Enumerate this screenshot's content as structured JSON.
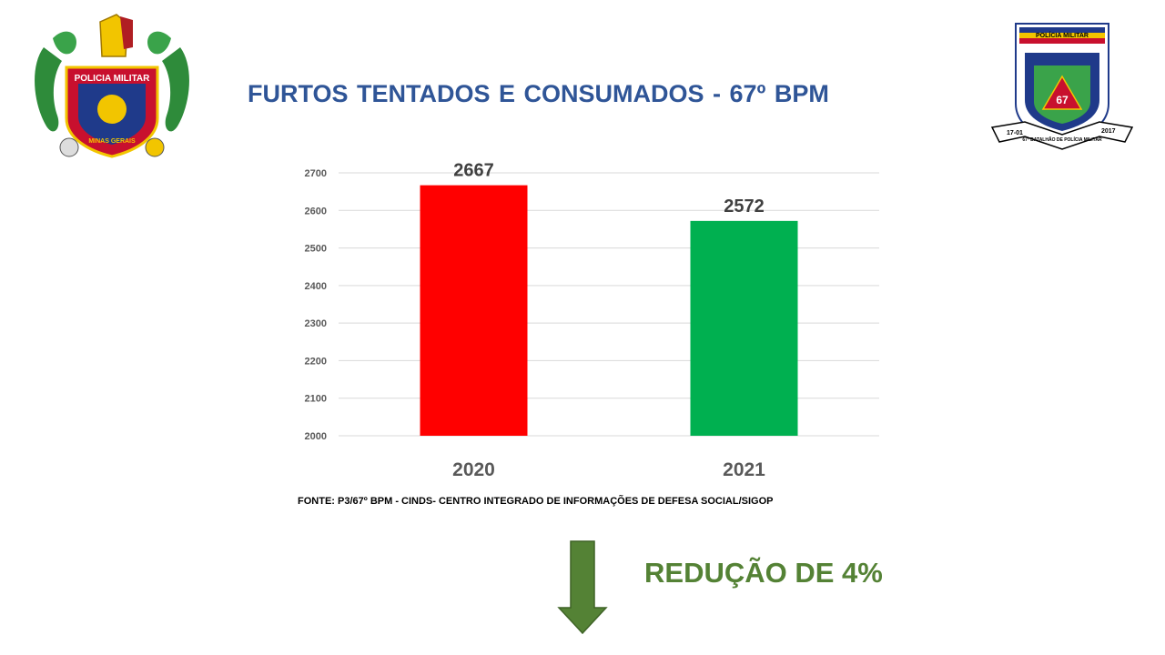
{
  "title": "FURTOS TENTADOS E CONSUMADOS  - 67º BPM",
  "logos": {
    "left": {
      "icon": "pmmg-coat-of-arms-icon",
      "text": "POLICIA MILITAR",
      "subtext": "MINAS GERAIS"
    },
    "right": {
      "icon": "67-bpm-badge-icon",
      "text_top": "POLÍCIA MILITAR",
      "number": "67",
      "year_left": "17-01",
      "year_right": "2017",
      "banner": "67º BATALHÃO DE POLÍCIA MILITAR"
    }
  },
  "chart_data": {
    "type": "bar",
    "title": "",
    "categories": [
      "2020",
      "2021"
    ],
    "values": [
      2667,
      2572
    ],
    "data_labels": [
      "2667",
      "2572"
    ],
    "colors": [
      "#ff0000",
      "#00b050"
    ],
    "ylim": [
      2000,
      2700
    ],
    "y_ticks": [
      "2000",
      "2100",
      "2200",
      "2300",
      "2400",
      "2500",
      "2600",
      "2700"
    ],
    "grid": true,
    "xlabel": "",
    "ylabel": ""
  },
  "source": "FONTE: P3/67º BPM - CINDS- CENTRO INTEGRADO DE INFORMAÇÕES DE DEFESA SOCIAL/SIGOP",
  "reduction": {
    "text": "REDUÇÃO DE 4%",
    "color": "#548235",
    "arrow_icon": "down-arrow-icon"
  }
}
